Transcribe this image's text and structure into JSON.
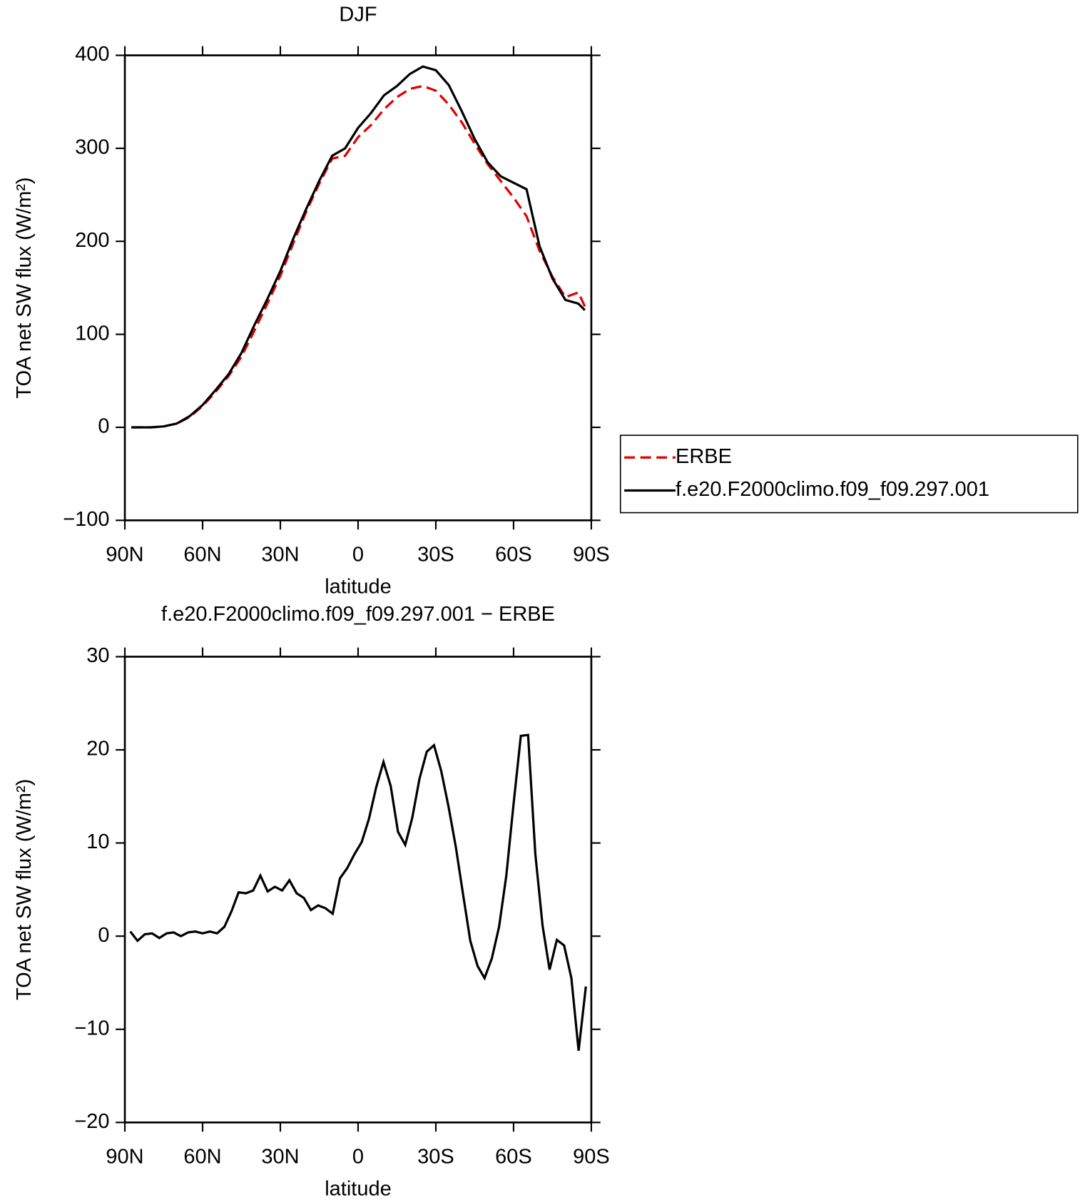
{
  "chart_data": [
    {
      "type": "line",
      "title": "DJF",
      "xlabel": "latitude",
      "ylabel": "TOA net SW flux (W/m²)",
      "x": [
        87.5,
        85,
        80,
        75,
        70,
        65,
        60,
        55,
        50,
        45,
        40,
        35,
        30,
        25,
        20,
        15,
        10,
        5,
        0,
        -5,
        -10,
        -15,
        -20,
        -25,
        -30,
        -35,
        -40,
        -45,
        -50,
        -55,
        -60,
        -65,
        -70,
        -75,
        -80,
        -85,
        -87.5
      ],
      "series": [
        {
          "name": "ERBE",
          "color": "#e00000",
          "linestyle": "dashed",
          "values": [
            0,
            0,
            0,
            1,
            4,
            11,
            23,
            38,
            55,
            76,
            104,
            133,
            163,
            198,
            232,
            262,
            289,
            292,
            312,
            325,
            342,
            355,
            364,
            367,
            362,
            347,
            328,
            305,
            283,
            265,
            247,
            227,
            190,
            162,
            140,
            145,
            130
          ]
        },
        {
          "name": "f.e20.F2000climo.f09_f09.297.001",
          "color": "#000000",
          "linestyle": "solid",
          "values": [
            0,
            0,
            0,
            1,
            4,
            12,
            24,
            40,
            57,
            80,
            110,
            138,
            168,
            203,
            235,
            265,
            292,
            300,
            322,
            338,
            357,
            367,
            380,
            388,
            384,
            368,
            340,
            310,
            285,
            270,
            263,
            256,
            195,
            160,
            137,
            133,
            126
          ]
        }
      ],
      "xlim": [
        90,
        -90
      ],
      "xticks": [
        {
          "value": 90,
          "label": "90N"
        },
        {
          "value": 60,
          "label": "60N"
        },
        {
          "value": 30,
          "label": "30N"
        },
        0,
        {
          "value": -30,
          "label": "30S"
        },
        {
          "value": -60,
          "label": "60S"
        },
        {
          "value": -90,
          "label": "90S"
        }
      ],
      "ylim": [
        -100,
        400
      ],
      "yticks": [
        {
          "value": -100,
          "label": "−100"
        },
        0,
        100,
        200,
        300,
        400
      ],
      "legend": "right"
    },
    {
      "type": "line",
      "title": "f.e20.F2000climo.f09_f09.297.001 − ERBE",
      "xlabel": "latitude",
      "ylabel": "TOA net SW flux (W/m²)",
      "x": [
        87.9,
        85.1,
        82.3,
        79.5,
        76.7,
        73.9,
        71.2,
        68.4,
        65.6,
        62.8,
        60.0,
        57.2,
        54.4,
        51.6,
        48.8,
        46.1,
        43.3,
        40.5,
        37.7,
        34.9,
        32.1,
        29.3,
        26.5,
        23.7,
        20.9,
        18.2,
        15.4,
        12.6,
        9.8,
        7.0,
        4.2,
        1.4,
        -1.4,
        -4.2,
        -7.0,
        -9.8,
        -12.6,
        -15.4,
        -18.2,
        -20.9,
        -23.7,
        -26.5,
        -29.3,
        -32.1,
        -34.9,
        -37.7,
        -40.5,
        -43.3,
        -46.1,
        -48.8,
        -51.6,
        -54.4,
        -57.2,
        -60.0,
        -62.8,
        -65.6,
        -68.4,
        -71.2,
        -73.9,
        -76.7,
        -79.5,
        -82.3,
        -85.1,
        -87.9
      ],
      "series": [
        {
          "color": "#000000",
          "linestyle": "solid",
          "values": [
            0.5,
            -0.5,
            0.2,
            0.3,
            -0.2,
            0.3,
            0.4,
            0,
            0.4,
            0.5,
            0.3,
            0.5,
            0.3,
            1.0,
            2.7,
            4.7,
            4.6,
            4.9,
            6.5,
            4.8,
            5.3,
            4.9,
            6.0,
            4.6,
            4.1,
            2.8,
            3.3,
            3.0,
            2.4,
            6.2,
            7.3,
            8.8,
            10.1,
            12.6,
            16.0,
            18.7,
            16.1,
            11.2,
            9.8,
            12.7,
            16.9,
            19.8,
            20.5,
            17.7,
            13.9,
            9.6,
            4.5,
            -0.5,
            -3.2,
            -4.5,
            -2.4,
            1.0,
            6.5,
            14.2,
            21.5,
            21.6,
            8.8,
            1.1,
            -3.6,
            -0.4,
            -1.0,
            -4.5,
            -12.3,
            -5.4
          ]
        }
      ],
      "xlim": [
        90,
        -90
      ],
      "xticks": [
        {
          "value": 90,
          "label": "90N"
        },
        {
          "value": 60,
          "label": "60N"
        },
        {
          "value": 30,
          "label": "30N"
        },
        0,
        {
          "value": -30,
          "label": "30S"
        },
        {
          "value": -60,
          "label": "60S"
        },
        {
          "value": -90,
          "label": "90S"
        }
      ],
      "ylim": [
        -20,
        30
      ],
      "yticks": [
        {
          "value": -20,
          "label": "−20"
        },
        {
          "value": -10,
          "label": "−10"
        },
        0,
        10,
        20,
        30
      ]
    }
  ]
}
